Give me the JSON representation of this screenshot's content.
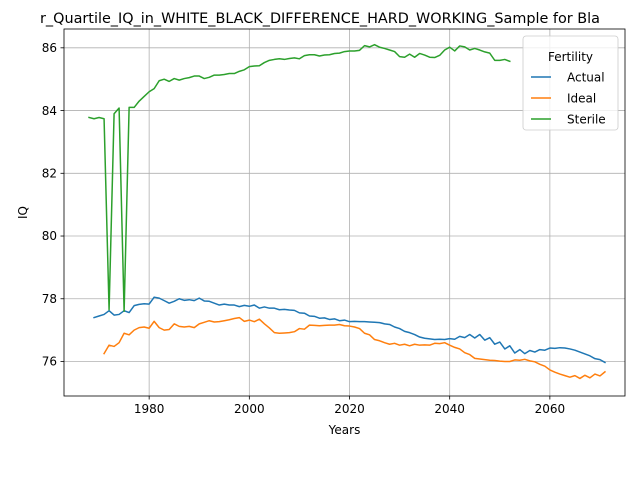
{
  "chart_data": {
    "type": "line",
    "title": "r_Quartile_IQ_in_WHITE_BLACK_DIFFERENCE_HARD_WORKING_Sample for Bla",
    "xlabel": "Years",
    "ylabel": "IQ",
    "xlim": [
      1963,
      2075
    ],
    "ylim": [
      74.9,
      86.6
    ],
    "xticks": [
      1980,
      2000,
      2020,
      2040,
      2060
    ],
    "yticks": [
      76,
      78,
      80,
      82,
      84,
      86
    ],
    "grid": true,
    "legend": {
      "title": "Fertility",
      "position": "top-right"
    },
    "series": [
      {
        "name": "Actual",
        "color": "#1f77b4",
        "points": [
          [
            1969,
            77.4
          ],
          [
            1970,
            77.45
          ],
          [
            1971,
            77.5
          ],
          [
            1972,
            77.62
          ],
          [
            1973,
            77.48
          ],
          [
            1974,
            77.5
          ],
          [
            1975,
            77.62
          ],
          [
            1976,
            77.56
          ],
          [
            1977,
            77.78
          ],
          [
            1978,
            77.82
          ],
          [
            1979,
            77.84
          ],
          [
            1980,
            77.83
          ],
          [
            1981,
            78.05
          ],
          [
            1982,
            78.02
          ],
          [
            1983,
            77.94
          ],
          [
            1984,
            77.86
          ],
          [
            1985,
            77.92
          ],
          [
            1986,
            78.0
          ],
          [
            1987,
            77.95
          ],
          [
            1988,
            77.97
          ],
          [
            1989,
            77.94
          ],
          [
            1990,
            78.02
          ],
          [
            1991,
            77.93
          ],
          [
            1992,
            77.92
          ],
          [
            1993,
            77.86
          ],
          [
            1994,
            77.8
          ],
          [
            1995,
            77.83
          ],
          [
            1996,
            77.8
          ],
          [
            1997,
            77.8
          ],
          [
            1998,
            77.75
          ],
          [
            1999,
            77.79
          ],
          [
            2000,
            77.76
          ],
          [
            2001,
            77.8
          ],
          [
            2002,
            77.7
          ],
          [
            2003,
            77.74
          ],
          [
            2004,
            77.7
          ],
          [
            2005,
            77.7
          ],
          [
            2006,
            77.65
          ],
          [
            2007,
            77.66
          ],
          [
            2008,
            77.64
          ],
          [
            2009,
            77.63
          ],
          [
            2010,
            77.55
          ],
          [
            2011,
            77.54
          ],
          [
            2012,
            77.45
          ],
          [
            2013,
            77.44
          ],
          [
            2014,
            77.38
          ],
          [
            2015,
            77.39
          ],
          [
            2016,
            77.34
          ],
          [
            2017,
            77.36
          ],
          [
            2018,
            77.3
          ],
          [
            2019,
            77.32
          ],
          [
            2020,
            77.27
          ],
          [
            2021,
            77.28
          ],
          [
            2022,
            77.27
          ],
          [
            2023,
            77.27
          ],
          [
            2024,
            77.26
          ],
          [
            2025,
            77.25
          ],
          [
            2026,
            77.24
          ],
          [
            2027,
            77.2
          ],
          [
            2028,
            77.18
          ],
          [
            2029,
            77.1
          ],
          [
            2030,
            77.05
          ],
          [
            2031,
            76.96
          ],
          [
            2032,
            76.92
          ],
          [
            2033,
            76.86
          ],
          [
            2034,
            76.78
          ],
          [
            2035,
            76.74
          ],
          [
            2036,
            76.72
          ],
          [
            2037,
            76.7
          ],
          [
            2038,
            76.71
          ],
          [
            2039,
            76.7
          ],
          [
            2040,
            76.73
          ],
          [
            2041,
            76.71
          ],
          [
            2042,
            76.8
          ],
          [
            2043,
            76.76
          ],
          [
            2044,
            76.86
          ],
          [
            2045,
            76.75
          ],
          [
            2046,
            76.86
          ],
          [
            2047,
            76.68
          ],
          [
            2048,
            76.76
          ],
          [
            2049,
            76.55
          ],
          [
            2050,
            76.62
          ],
          [
            2051,
            76.4
          ],
          [
            2052,
            76.5
          ],
          [
            2053,
            76.27
          ],
          [
            2054,
            76.38
          ],
          [
            2055,
            76.25
          ],
          [
            2056,
            76.35
          ],
          [
            2057,
            76.3
          ],
          [
            2058,
            76.38
          ],
          [
            2059,
            76.36
          ],
          [
            2060,
            76.43
          ],
          [
            2061,
            76.42
          ],
          [
            2062,
            76.44
          ],
          [
            2063,
            76.43
          ],
          [
            2064,
            76.4
          ],
          [
            2065,
            76.36
          ],
          [
            2066,
            76.3
          ],
          [
            2067,
            76.24
          ],
          [
            2068,
            76.18
          ],
          [
            2069,
            76.09
          ],
          [
            2070,
            76.06
          ],
          [
            2071,
            75.97
          ]
        ]
      },
      {
        "name": "Ideal",
        "color": "#ff7f0e",
        "points": [
          [
            1971,
            76.25
          ],
          [
            1972,
            76.52
          ],
          [
            1973,
            76.48
          ],
          [
            1974,
            76.6
          ],
          [
            1975,
            76.9
          ],
          [
            1976,
            76.85
          ],
          [
            1977,
            77.0
          ],
          [
            1978,
            77.08
          ],
          [
            1979,
            77.1
          ],
          [
            1980,
            77.06
          ],
          [
            1981,
            77.28
          ],
          [
            1982,
            77.08
          ],
          [
            1983,
            77.0
          ],
          [
            1984,
            77.02
          ],
          [
            1985,
            77.2
          ],
          [
            1986,
            77.12
          ],
          [
            1987,
            77.1
          ],
          [
            1988,
            77.12
          ],
          [
            1989,
            77.08
          ],
          [
            1990,
            77.2
          ],
          [
            1991,
            77.25
          ],
          [
            1992,
            77.3
          ],
          [
            1993,
            77.26
          ],
          [
            1994,
            77.27
          ],
          [
            1995,
            77.3
          ],
          [
            1996,
            77.33
          ],
          [
            1997,
            77.37
          ],
          [
            1998,
            77.4
          ],
          [
            1999,
            77.28
          ],
          [
            2000,
            77.32
          ],
          [
            2001,
            77.27
          ],
          [
            2002,
            77.35
          ],
          [
            2003,
            77.2
          ],
          [
            2004,
            77.07
          ],
          [
            2005,
            76.92
          ],
          [
            2006,
            76.9
          ],
          [
            2007,
            76.91
          ],
          [
            2008,
            76.92
          ],
          [
            2009,
            76.95
          ],
          [
            2010,
            77.05
          ],
          [
            2011,
            77.03
          ],
          [
            2012,
            77.16
          ],
          [
            2013,
            77.15
          ],
          [
            2014,
            77.14
          ],
          [
            2015,
            77.15
          ],
          [
            2016,
            77.16
          ],
          [
            2017,
            77.16
          ],
          [
            2018,
            77.18
          ],
          [
            2019,
            77.14
          ],
          [
            2020,
            77.13
          ],
          [
            2021,
            77.1
          ],
          [
            2022,
            77.05
          ],
          [
            2023,
            76.9
          ],
          [
            2024,
            76.85
          ],
          [
            2025,
            76.7
          ],
          [
            2026,
            76.66
          ],
          [
            2027,
            76.6
          ],
          [
            2028,
            76.55
          ],
          [
            2029,
            76.58
          ],
          [
            2030,
            76.52
          ],
          [
            2031,
            76.55
          ],
          [
            2032,
            76.5
          ],
          [
            2033,
            76.55
          ],
          [
            2034,
            76.52
          ],
          [
            2035,
            76.53
          ],
          [
            2036,
            76.52
          ],
          [
            2037,
            76.58
          ],
          [
            2038,
            76.57
          ],
          [
            2039,
            76.6
          ],
          [
            2040,
            76.52
          ],
          [
            2041,
            76.45
          ],
          [
            2042,
            76.4
          ],
          [
            2043,
            76.28
          ],
          [
            2044,
            76.22
          ],
          [
            2045,
            76.1
          ],
          [
            2046,
            76.08
          ],
          [
            2047,
            76.06
          ],
          [
            2048,
            76.04
          ],
          [
            2049,
            76.03
          ],
          [
            2050,
            76.01
          ],
          [
            2051,
            76.0
          ],
          [
            2052,
            76.0
          ],
          [
            2053,
            76.05
          ],
          [
            2054,
            76.04
          ],
          [
            2055,
            76.07
          ],
          [
            2056,
            76.02
          ],
          [
            2057,
            75.99
          ],
          [
            2058,
            75.91
          ],
          [
            2059,
            75.85
          ],
          [
            2060,
            75.73
          ],
          [
            2061,
            75.66
          ],
          [
            2062,
            75.6
          ],
          [
            2063,
            75.55
          ],
          [
            2064,
            75.5
          ],
          [
            2065,
            75.55
          ],
          [
            2066,
            75.46
          ],
          [
            2067,
            75.56
          ],
          [
            2068,
            75.48
          ],
          [
            2069,
            75.6
          ],
          [
            2070,
            75.54
          ],
          [
            2071,
            75.67
          ]
        ]
      },
      {
        "name": "Sterile",
        "color": "#2ca02c",
        "points": [
          [
            1968,
            83.78
          ],
          [
            1969,
            83.74
          ],
          [
            1970,
            83.78
          ],
          [
            1971,
            83.74
          ],
          [
            1972,
            77.65
          ],
          [
            1973,
            83.9
          ],
          [
            1974,
            84.08
          ],
          [
            1975,
            77.6
          ],
          [
            1976,
            84.1
          ],
          [
            1977,
            84.1
          ],
          [
            1978,
            84.3
          ],
          [
            1979,
            84.45
          ],
          [
            1980,
            84.6
          ],
          [
            1981,
            84.7
          ],
          [
            1982,
            84.95
          ],
          [
            1983,
            85.0
          ],
          [
            1984,
            84.93
          ],
          [
            1985,
            85.02
          ],
          [
            1986,
            84.97
          ],
          [
            1987,
            85.02
          ],
          [
            1988,
            85.05
          ],
          [
            1989,
            85.1
          ],
          [
            1990,
            85.1
          ],
          [
            1991,
            85.02
          ],
          [
            1992,
            85.06
          ],
          [
            1993,
            85.13
          ],
          [
            1994,
            85.13
          ],
          [
            1995,
            85.15
          ],
          [
            1996,
            85.18
          ],
          [
            1997,
            85.18
          ],
          [
            1998,
            85.25
          ],
          [
            1999,
            85.3
          ],
          [
            2000,
            85.4
          ],
          [
            2001,
            85.42
          ],
          [
            2002,
            85.43
          ],
          [
            2003,
            85.53
          ],
          [
            2004,
            85.6
          ],
          [
            2005,
            85.63
          ],
          [
            2006,
            85.65
          ],
          [
            2007,
            85.63
          ],
          [
            2008,
            85.66
          ],
          [
            2009,
            85.68
          ],
          [
            2010,
            85.65
          ],
          [
            2011,
            85.75
          ],
          [
            2012,
            85.78
          ],
          [
            2013,
            85.78
          ],
          [
            2014,
            85.74
          ],
          [
            2015,
            85.77
          ],
          [
            2016,
            85.78
          ],
          [
            2017,
            85.82
          ],
          [
            2018,
            85.83
          ],
          [
            2019,
            85.88
          ],
          [
            2020,
            85.9
          ],
          [
            2021,
            85.9
          ],
          [
            2022,
            85.92
          ],
          [
            2023,
            86.07
          ],
          [
            2024,
            86.03
          ],
          [
            2025,
            86.1
          ],
          [
            2026,
            86.02
          ],
          [
            2027,
            85.98
          ],
          [
            2028,
            85.93
          ],
          [
            2029,
            85.88
          ],
          [
            2030,
            85.72
          ],
          [
            2031,
            85.7
          ],
          [
            2032,
            85.8
          ],
          [
            2033,
            85.7
          ],
          [
            2034,
            85.82
          ],
          [
            2035,
            85.77
          ],
          [
            2036,
            85.7
          ],
          [
            2037,
            85.69
          ],
          [
            2038,
            85.76
          ],
          [
            2039,
            85.93
          ],
          [
            2040,
            86.02
          ],
          [
            2041,
            85.9
          ],
          [
            2042,
            86.06
          ],
          [
            2043,
            86.03
          ],
          [
            2044,
            85.93
          ],
          [
            2045,
            85.98
          ],
          [
            2046,
            85.93
          ],
          [
            2047,
            85.87
          ],
          [
            2048,
            85.83
          ],
          [
            2049,
            85.6
          ],
          [
            2050,
            85.6
          ],
          [
            2051,
            85.63
          ],
          [
            2052,
            85.57
          ]
        ]
      }
    ]
  }
}
